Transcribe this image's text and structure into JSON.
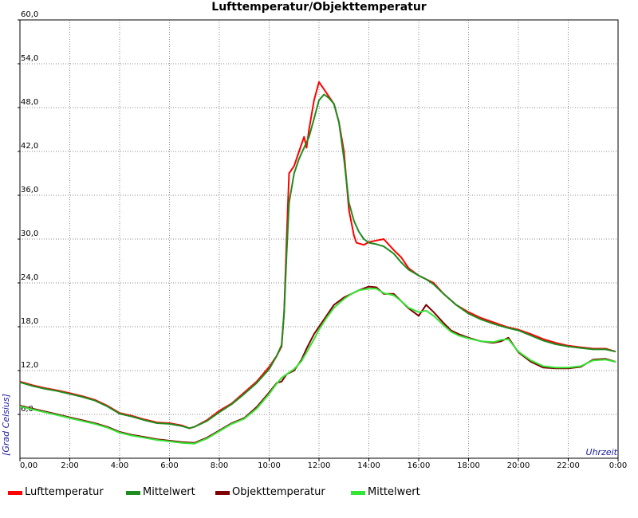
{
  "chart_data": {
    "type": "line",
    "title": "Lufttemperatur/Objekttemperatur",
    "xlabel": "Uhrzeit",
    "ylabel": "[Grad Celsius]",
    "xlim": [
      0,
      24
    ],
    "ylim": [
      0,
      60
    ],
    "grid": true,
    "legend_position": "bottom",
    "x_ticks": [
      0,
      2,
      4,
      6,
      8,
      10,
      12,
      14,
      16,
      18,
      20,
      22,
      24
    ],
    "x_tick_labels": [
      "0,00",
      "2:00",
      "4:00",
      "6:00",
      "8:00",
      "10:00",
      "12:00",
      "14:00",
      "16:00",
      "18:00",
      "20:00",
      "22:00",
      "0:00"
    ],
    "y_ticks": [
      6,
      12,
      18,
      24,
      30,
      36,
      42,
      48,
      54,
      60
    ],
    "y_tick_labels": [
      "6,0",
      "12,0",
      "18,0",
      "24,0",
      "30,0",
      "36,0",
      "42,0",
      "48,0",
      "54,0",
      "60,0"
    ],
    "series": [
      {
        "name": "Lufttemperatur",
        "color": "#ff0000",
        "x": [
          0,
          0.5,
          1,
          1.5,
          2,
          2.5,
          3,
          3.5,
          4,
          4.5,
          5,
          5.5,
          6,
          6.5,
          6.8,
          7,
          7.5,
          8,
          8.5,
          9,
          9.5,
          10,
          10.3,
          10.5,
          10.6,
          10.7,
          10.8,
          11,
          11.2,
          11.4,
          11.5,
          11.6,
          11.8,
          12,
          12.2,
          12.4,
          12.6,
          12.8,
          13,
          13.2,
          13.4,
          13.5,
          13.8,
          14,
          14.3,
          14.6,
          15,
          15.3,
          15.6,
          16,
          16.3,
          16.6,
          17,
          17.5,
          18,
          18.5,
          19,
          19.5,
          20,
          20.5,
          21,
          21.5,
          22,
          22.5,
          23,
          23.5,
          23.9
        ],
        "values": [
          10.5,
          10.0,
          9.6,
          9.3,
          8.9,
          8.5,
          8.0,
          7.2,
          6.2,
          5.8,
          5.3,
          4.9,
          4.8,
          4.5,
          4.1,
          4.3,
          5.2,
          6.5,
          7.5,
          9.0,
          10.5,
          12.5,
          14.0,
          15.3,
          20.0,
          30.0,
          39.0,
          40.0,
          42.0,
          44.0,
          42.5,
          45.0,
          49.0,
          51.5,
          50.5,
          49.5,
          48.5,
          46.0,
          42.0,
          34.0,
          30.5,
          29.5,
          29.2,
          29.6,
          29.8,
          30.0,
          28.5,
          27.5,
          26.0,
          25.0,
          24.5,
          24.0,
          22.5,
          21.0,
          20.0,
          19.2,
          18.6,
          18.0,
          17.6,
          17.0,
          16.3,
          15.8,
          15.4,
          15.2,
          15.0,
          15.0,
          14.6
        ]
      },
      {
        "name": "Mittelwert",
        "color": "#1e8c1e",
        "x": [
          0,
          0.5,
          1,
          1.5,
          2,
          2.5,
          3,
          3.5,
          4,
          4.5,
          5,
          5.5,
          6,
          6.5,
          6.8,
          7,
          7.5,
          8,
          8.5,
          9,
          9.5,
          10,
          10.3,
          10.5,
          10.6,
          10.7,
          10.8,
          11,
          11.2,
          11.4,
          11.6,
          11.8,
          12,
          12.2,
          12.4,
          12.6,
          12.8,
          13,
          13.2,
          13.4,
          13.6,
          13.8,
          14,
          14.3,
          14.6,
          15,
          15.3,
          15.6,
          16,
          16.3,
          16.6,
          17,
          17.5,
          18,
          18.5,
          19,
          19.5,
          20,
          20.5,
          21,
          21.5,
          22,
          22.5,
          23,
          23.5,
          23.9
        ],
        "values": [
          10.4,
          9.9,
          9.5,
          9.2,
          8.8,
          8.4,
          7.9,
          7.1,
          6.1,
          5.7,
          5.2,
          4.8,
          4.7,
          4.4,
          4.1,
          4.3,
          5.1,
          6.3,
          7.4,
          8.8,
          10.3,
          12.2,
          14.0,
          15.5,
          20.0,
          28.0,
          35.0,
          39.0,
          41.0,
          42.5,
          44.0,
          46.5,
          49.0,
          49.8,
          49.3,
          48.5,
          46.0,
          41.0,
          35.0,
          32.5,
          31.0,
          30.0,
          29.5,
          29.3,
          29.0,
          28.0,
          26.8,
          25.8,
          25.0,
          24.5,
          23.8,
          22.5,
          21.0,
          19.8,
          19.0,
          18.4,
          17.9,
          17.5,
          16.8,
          16.1,
          15.6,
          15.3,
          15.1,
          14.9,
          14.9,
          14.6
        ]
      },
      {
        "name": "Objekttemperatur",
        "color": "#800000",
        "x": [
          0,
          0.5,
          1,
          1.5,
          2,
          2.5,
          3,
          3.5,
          4,
          4.5,
          5,
          5.5,
          6,
          6.5,
          7,
          7.5,
          8,
          8.5,
          9,
          9.5,
          10,
          10.3,
          10.5,
          10.7,
          11,
          11.3,
          11.5,
          11.8,
          12,
          12.3,
          12.6,
          13,
          13.3,
          13.6,
          14,
          14.3,
          14.6,
          15,
          15.3,
          15.6,
          16,
          16.3,
          16.6,
          17,
          17.3,
          17.6,
          18,
          18.5,
          19,
          19.3,
          19.6,
          20,
          20.5,
          21,
          21.5,
          22,
          22.5,
          23,
          23.5,
          23.9
        ],
        "values": [
          7.2,
          6.8,
          6.4,
          6.0,
          5.6,
          5.2,
          4.8,
          4.3,
          3.6,
          3.2,
          2.9,
          2.6,
          2.4,
          2.2,
          2.1,
          2.8,
          3.8,
          4.8,
          5.5,
          7.0,
          9.0,
          10.3,
          10.5,
          11.5,
          12.0,
          13.5,
          15.0,
          17.0,
          18.0,
          19.5,
          21.0,
          22.0,
          22.5,
          23.0,
          23.5,
          23.4,
          22.5,
          22.5,
          21.5,
          20.5,
          19.5,
          21.0,
          20.0,
          18.5,
          17.5,
          17.0,
          16.5,
          16.0,
          15.8,
          16.0,
          16.5,
          14.5,
          13.2,
          12.4,
          12.3,
          12.3,
          12.5,
          13.5,
          13.6,
          13.2
        ]
      },
      {
        "name": "Mittelwert",
        "color": "#33e633",
        "x": [
          0,
          0.5,
          1,
          1.5,
          2,
          2.5,
          3,
          3.5,
          4,
          4.5,
          5,
          5.5,
          6,
          6.5,
          7,
          7.5,
          8,
          8.5,
          9,
          9.5,
          10,
          10.3,
          10.5,
          10.7,
          11,
          11.3,
          11.5,
          11.8,
          12,
          12.3,
          12.6,
          13,
          13.3,
          13.6,
          14,
          14.3,
          14.6,
          15,
          15.3,
          15.6,
          16,
          16.3,
          16.6,
          17,
          17.3,
          17.6,
          18,
          18.5,
          19,
          19.3,
          19.6,
          20,
          20.5,
          21,
          21.5,
          22,
          22.5,
          23,
          23.5,
          23.9
        ],
        "values": [
          7.1,
          6.7,
          6.3,
          5.9,
          5.5,
          5.1,
          4.7,
          4.2,
          3.5,
          3.1,
          2.8,
          2.5,
          2.3,
          2.1,
          2.0,
          2.7,
          3.7,
          4.7,
          5.4,
          6.8,
          8.8,
          10.2,
          11.0,
          11.5,
          12.2,
          13.3,
          14.5,
          16.3,
          17.6,
          19.2,
          20.6,
          21.8,
          22.5,
          23.0,
          23.2,
          23.2,
          22.6,
          22.3,
          21.5,
          20.6,
          20.0,
          20.2,
          19.5,
          18.2,
          17.3,
          16.8,
          16.4,
          16.0,
          15.9,
          16.2,
          16.3,
          14.6,
          13.4,
          12.6,
          12.4,
          12.4,
          12.6,
          13.4,
          13.5,
          13.2
        ]
      }
    ]
  }
}
